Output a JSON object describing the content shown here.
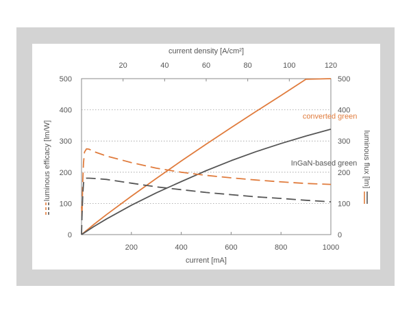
{
  "chart_data": {
    "type": "line",
    "x": {
      "label": "current [mA]",
      "range": [
        0,
        1000
      ],
      "ticks": [
        0,
        200,
        400,
        600,
        800,
        1000
      ]
    },
    "x_top": {
      "label": "current density [A/cm²]",
      "range": [
        0,
        120
      ],
      "ticks": [
        20,
        40,
        60,
        80,
        100,
        120
      ]
    },
    "y_left": {
      "label": "luminous efficacy [lm/W]",
      "range": [
        0,
        500
      ],
      "ticks": [
        0,
        100,
        200,
        300,
        400,
        500
      ]
    },
    "y_right": {
      "label": "luminous flux [lm]",
      "range": [
        0,
        500
      ],
      "ticks": [
        0,
        100,
        200,
        300,
        400,
        500
      ]
    },
    "grid": "horizontal dotted",
    "colors": {
      "converted": "#e07b3c",
      "ingan": "#555555"
    },
    "series": [
      {
        "name": "converted green",
        "measure": "luminous flux",
        "axis": "right",
        "style": "solid",
        "color": "#e07b3c",
        "x": [
          0,
          50,
          100,
          200,
          300,
          400,
          500,
          600,
          700,
          800,
          900,
          1000
        ],
        "y": [
          0,
          33,
          64,
          123,
          180,
          236,
          290,
          343,
          395,
          446,
          498,
          500
        ]
      },
      {
        "name": "InGaN-based green",
        "measure": "luminous flux",
        "axis": "right",
        "style": "solid",
        "color": "#555555",
        "x": [
          0,
          50,
          100,
          200,
          300,
          400,
          500,
          600,
          700,
          800,
          900,
          1000
        ],
        "y": [
          0,
          26,
          50,
          94,
          134,
          170,
          205,
          237,
          266,
          292,
          316,
          338
        ]
      },
      {
        "name": "converted green",
        "measure": "luminous efficacy",
        "axis": "left",
        "style": "dashed",
        "color": "#e07b3c",
        "x": [
          0,
          2,
          5,
          8,
          12,
          20,
          30,
          50,
          100,
          200,
          300,
          400,
          500,
          600,
          700,
          800,
          900,
          1000
        ],
        "y": [
          90,
          60,
          170,
          230,
          265,
          275,
          274,
          266,
          252,
          231,
          213,
          200,
          190,
          182,
          175,
          169,
          164,
          161
        ]
      },
      {
        "name": "InGaN-based green",
        "measure": "luminous efficacy",
        "axis": "left",
        "style": "dashed",
        "color": "#555555",
        "x": [
          0,
          2,
          5,
          8,
          12,
          20,
          30,
          50,
          100,
          200,
          300,
          400,
          500,
          600,
          700,
          800,
          900,
          1000
        ],
        "y": [
          0,
          60,
          125,
          165,
          178,
          181,
          181,
          180,
          177,
          165,
          153,
          144,
          135,
          128,
          121,
          116,
          110,
          105
        ]
      }
    ],
    "annotations": [
      {
        "text": "converted green",
        "x": 880,
        "y": 380,
        "color": "#e07b3c"
      },
      {
        "text": "InGaN-based green",
        "x": 880,
        "y": 230,
        "color": "#555555"
      }
    ]
  }
}
